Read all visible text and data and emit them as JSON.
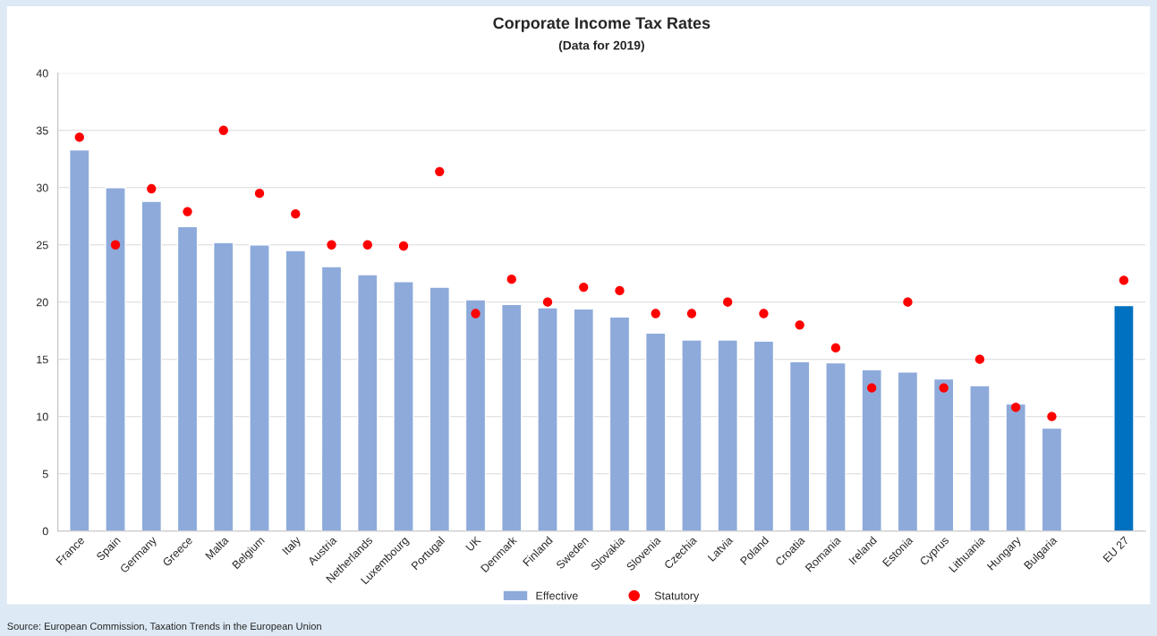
{
  "chart_data": {
    "type": "bar",
    "title": "Corporate Income Tax Rates",
    "subtitle": "(Data for 2019)",
    "categories": [
      "France",
      "Spain",
      "Germany",
      "Greece",
      "Malta",
      "Belgium",
      "Italy",
      "Austria",
      "Netherlands",
      "Luxembourg",
      "Portugal",
      "UK",
      "Denmark",
      "Finland",
      "Sweden",
      "Slovakia",
      "Slovenia",
      "Czechia",
      "Latvia",
      "Poland",
      "Croatia",
      "Romania",
      "Ireland",
      "Estonia",
      "Cyprus",
      "Lithuania",
      "Hungary",
      "Bulgaria",
      null,
      "EU 27"
    ],
    "series": [
      {
        "name": "Effective",
        "color": "#8eaadb",
        "colors": [
          "#8eaadb",
          "#8eaadb",
          "#8eaadb",
          "#8eaadb",
          "#8eaadb",
          "#8eaadb",
          "#8eaadb",
          "#8eaadb",
          "#8eaadb",
          "#8eaadb",
          "#8eaadb",
          "#8eaadb",
          "#8eaadb",
          "#8eaadb",
          "#8eaadb",
          "#8eaadb",
          "#8eaadb",
          "#8eaadb",
          "#8eaadb",
          "#8eaadb",
          "#8eaadb",
          "#8eaadb",
          "#8eaadb",
          "#8eaadb",
          "#8eaadb",
          "#8eaadb",
          "#8eaadb",
          "#8eaadb",
          "#8eaadb",
          "#0070c0"
        ],
        "values": [
          33.3,
          30.0,
          28.8,
          26.6,
          25.2,
          25.0,
          24.5,
          23.1,
          22.4,
          21.8,
          21.3,
          20.2,
          19.8,
          19.5,
          19.4,
          18.7,
          17.3,
          16.7,
          16.7,
          16.6,
          14.8,
          14.7,
          14.1,
          13.9,
          13.3,
          12.7,
          11.1,
          9.0,
          null,
          19.7
        ]
      },
      {
        "name": "Statutory",
        "type": "scatter",
        "color": "#ff0000",
        "marker": "circle",
        "values": [
          34.4,
          25.0,
          29.9,
          27.9,
          35.0,
          29.5,
          27.7,
          25.0,
          25.0,
          24.9,
          31.4,
          19.0,
          22.0,
          20.0,
          21.3,
          21.0,
          19.0,
          19.0,
          20.0,
          19.0,
          18.0,
          16.0,
          12.5,
          20.0,
          12.5,
          15.0,
          10.8,
          10.0,
          null,
          21.9
        ]
      }
    ],
    "ylim": [
      0,
      40
    ],
    "yticks": [
      0,
      5,
      10,
      15,
      20,
      25,
      30,
      35,
      40
    ],
    "grid": "y",
    "legend": "bottom",
    "annotations": [
      "Source: European Commission, Taxation Trends in the European Union"
    ]
  }
}
